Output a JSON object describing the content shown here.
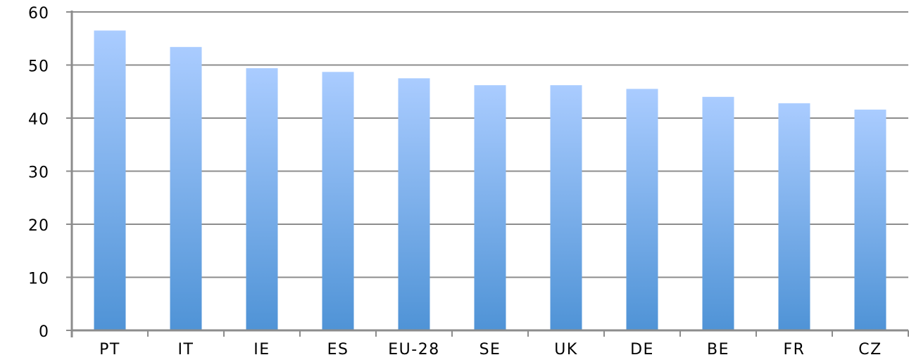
{
  "chart_data": {
    "type": "bar",
    "title": "",
    "xlabel": "",
    "ylabel": "",
    "categories": [
      "PT",
      "IT",
      "IE",
      "ES",
      "EU-28",
      "SE",
      "UK",
      "DE",
      "BE",
      "FR",
      "CZ"
    ],
    "values": [
      56.5,
      53.4,
      49.4,
      48.7,
      47.5,
      46.2,
      46.2,
      45.5,
      44.0,
      42.8,
      41.6
    ],
    "ylim": [
      0,
      60
    ],
    "yticks": [
      "0",
      "10",
      "20",
      "30",
      "40",
      "50",
      "60"
    ],
    "grid": true,
    "legend": "none",
    "colors": {
      "bar_top": "#aaccff",
      "bar_bottom": "#4f93d6",
      "grid": "#8c8c8c",
      "axis": "#8c8c8c"
    }
  }
}
